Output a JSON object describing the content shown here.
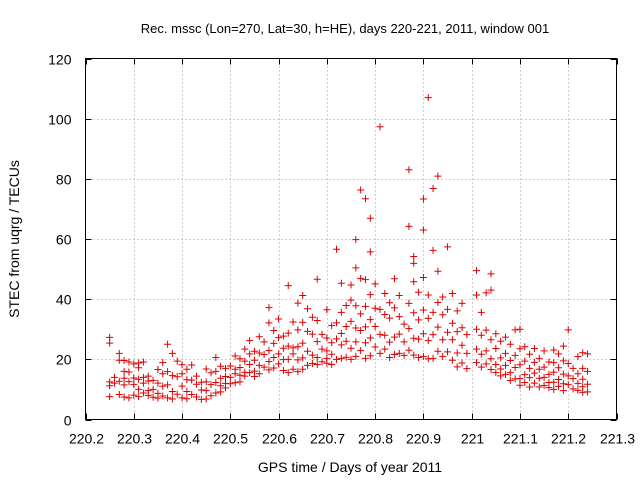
{
  "chart_data": {
    "type": "scatter",
    "title": "Rec. mssc (Lon=270, Lat=30, h=HE), days 220-221, 2011, window 001",
    "xlabel": "GPS time / Days of year 2011",
    "ylabel": "STEC from uqrg / TECUs",
    "xlim": [
      220.2,
      221.3
    ],
    "ylim": [
      0,
      120
    ],
    "xticks": [
      "220.2",
      "220.3",
      "220.4",
      "220.5",
      "220.6",
      "220.7",
      "220.8",
      "220.9",
      "221",
      "221.1",
      "221.2",
      "221.3"
    ],
    "yticks": [
      "0",
      "20",
      "40",
      "60",
      "80",
      "100",
      "120"
    ],
    "grid": true,
    "marker": "+",
    "color": "#dd0000",
    "points": [
      [
        220.25,
        27.3
      ],
      [
        220.25,
        25.4
      ],
      [
        220.25,
        12.5
      ],
      [
        220.25,
        11.2
      ],
      [
        220.25,
        7.6
      ],
      [
        220.26,
        14.0
      ],
      [
        220.26,
        12.1
      ],
      [
        220.27,
        22.0
      ],
      [
        220.27,
        19.7
      ],
      [
        220.27,
        12.7
      ],
      [
        220.27,
        8.3
      ],
      [
        220.28,
        19.6
      ],
      [
        220.28,
        16.0
      ],
      [
        220.28,
        13.7
      ],
      [
        220.28,
        11.5
      ],
      [
        220.28,
        7.5
      ],
      [
        220.29,
        19.1
      ],
      [
        220.29,
        15.8
      ],
      [
        220.29,
        12.6
      ],
      [
        220.29,
        7.2
      ],
      [
        220.3,
        18.5
      ],
      [
        220.3,
        13.8
      ],
      [
        220.3,
        11.6
      ],
      [
        220.3,
        8.1
      ],
      [
        220.31,
        18.8
      ],
      [
        220.31,
        17.2
      ],
      [
        220.31,
        13.4
      ],
      [
        220.31,
        10.0
      ],
      [
        220.31,
        7.6
      ],
      [
        220.32,
        19.1
      ],
      [
        220.32,
        14.0
      ],
      [
        220.32,
        12.1
      ],
      [
        220.32,
        8.8
      ],
      [
        220.33,
        14.4
      ],
      [
        220.33,
        12.8
      ],
      [
        220.33,
        9.6
      ],
      [
        220.33,
        8.0
      ],
      [
        220.34,
        13.0
      ],
      [
        220.34,
        10.0
      ],
      [
        220.34,
        7.4
      ],
      [
        220.35,
        16.6
      ],
      [
        220.35,
        12.1
      ],
      [
        220.35,
        8.7
      ],
      [
        220.35,
        7.1
      ],
      [
        220.36,
        18.9
      ],
      [
        220.36,
        15.2
      ],
      [
        220.36,
        11.1
      ],
      [
        220.36,
        7.8
      ],
      [
        220.37,
        25.0
      ],
      [
        220.37,
        15.9
      ],
      [
        220.37,
        11.5
      ],
      [
        220.37,
        7.2
      ],
      [
        220.38,
        22.0
      ],
      [
        220.38,
        14.6
      ],
      [
        220.38,
        9.3
      ],
      [
        220.38,
        6.8
      ],
      [
        220.39,
        19.4
      ],
      [
        220.39,
        14.2
      ],
      [
        220.39,
        8.4
      ],
      [
        220.4,
        18.2
      ],
      [
        220.4,
        15.2
      ],
      [
        220.4,
        11.1
      ],
      [
        220.4,
        7.2
      ],
      [
        220.41,
        16.7
      ],
      [
        220.41,
        13.2
      ],
      [
        220.41,
        9.3
      ],
      [
        220.41,
        6.9
      ],
      [
        220.42,
        18.1
      ],
      [
        220.42,
        13.1
      ],
      [
        220.42,
        8.3
      ],
      [
        220.43,
        14.4
      ],
      [
        220.43,
        11.7
      ],
      [
        220.43,
        7.5
      ],
      [
        220.44,
        12.4
      ],
      [
        220.44,
        9.8
      ],
      [
        220.44,
        6.7
      ],
      [
        220.45,
        16.8
      ],
      [
        220.45,
        12.5
      ],
      [
        220.45,
        9.6
      ],
      [
        220.45,
        6.8
      ],
      [
        220.46,
        15.5
      ],
      [
        220.46,
        11.6
      ],
      [
        220.46,
        7.9
      ],
      [
        220.47,
        20.6
      ],
      [
        220.47,
        16.0
      ],
      [
        220.47,
        12.3
      ],
      [
        220.47,
        8.8
      ],
      [
        220.48,
        17.7
      ],
      [
        220.48,
        13.7
      ],
      [
        220.48,
        11.2
      ],
      [
        220.48,
        9.2
      ],
      [
        220.49,
        17.0
      ],
      [
        220.49,
        14.3
      ],
      [
        220.49,
        12.0
      ],
      [
        220.49,
        10.5
      ],
      [
        220.5,
        17.8
      ],
      [
        220.5,
        14.0
      ],
      [
        220.5,
        11.9
      ],
      [
        220.51,
        21.1
      ],
      [
        220.51,
        16.7
      ],
      [
        220.51,
        15.2
      ],
      [
        220.51,
        12.2
      ],
      [
        220.52,
        20.2
      ],
      [
        220.52,
        17.3
      ],
      [
        220.52,
        14.7
      ],
      [
        220.52,
        12.5
      ],
      [
        220.53,
        23.4
      ],
      [
        220.53,
        19.4
      ],
      [
        220.53,
        15.7
      ],
      [
        220.53,
        14.4
      ],
      [
        220.54,
        26.2
      ],
      [
        220.54,
        21.8
      ],
      [
        220.54,
        18.3
      ],
      [
        220.54,
        15.6
      ],
      [
        220.55,
        22.7
      ],
      [
        220.55,
        19.7
      ],
      [
        220.55,
        16.1
      ],
      [
        220.55,
        14.3
      ],
      [
        220.56,
        27.5
      ],
      [
        220.56,
        22.1
      ],
      [
        220.56,
        18.0
      ],
      [
        220.56,
        15.2
      ],
      [
        220.57,
        25.8
      ],
      [
        220.57,
        21.6
      ],
      [
        220.57,
        17.4
      ],
      [
        220.58,
        37.2
      ],
      [
        220.58,
        32.1
      ],
      [
        220.58,
        22.9
      ],
      [
        220.58,
        19.3
      ],
      [
        220.58,
        16.5
      ],
      [
        220.59,
        29.6
      ],
      [
        220.59,
        25.3
      ],
      [
        220.59,
        20.6
      ],
      [
        220.59,
        17.1
      ],
      [
        220.6,
        33.4
      ],
      [
        220.6,
        27.2
      ],
      [
        220.6,
        21.8
      ],
      [
        220.6,
        18.5
      ],
      [
        220.61,
        27.7
      ],
      [
        220.61,
        23.7
      ],
      [
        220.61,
        19.9
      ],
      [
        220.61,
        16.3
      ],
      [
        220.62,
        44.5
      ],
      [
        220.62,
        28.7
      ],
      [
        220.62,
        24.4
      ],
      [
        220.62,
        20.0
      ],
      [
        220.62,
        15.6
      ],
      [
        220.63,
        32.4
      ],
      [
        220.63,
        23.8
      ],
      [
        220.63,
        21.8
      ],
      [
        220.63,
        16.7
      ],
      [
        220.64,
        38.7
      ],
      [
        220.64,
        29.8
      ],
      [
        220.64,
        24.2
      ],
      [
        220.64,
        19.8
      ],
      [
        220.64,
        15.9
      ],
      [
        220.65,
        41.2
      ],
      [
        220.65,
        32.3
      ],
      [
        220.65,
        25.4
      ],
      [
        220.65,
        20.5
      ],
      [
        220.65,
        16.7
      ],
      [
        220.66,
        36.8
      ],
      [
        220.66,
        29.3
      ],
      [
        220.66,
        22.7
      ],
      [
        220.66,
        18.0
      ],
      [
        220.67,
        34.0
      ],
      [
        220.67,
        28.4
      ],
      [
        220.67,
        21.4
      ],
      [
        220.67,
        18.6
      ],
      [
        220.68,
        46.6
      ],
      [
        220.68,
        32.9
      ],
      [
        220.68,
        25.9
      ],
      [
        220.68,
        20.6
      ],
      [
        220.68,
        18.3
      ],
      [
        220.69,
        28.3
      ],
      [
        220.69,
        23.4
      ],
      [
        220.69,
        19.2
      ],
      [
        220.7,
        36.5
      ],
      [
        220.7,
        27.1
      ],
      [
        220.7,
        22.8
      ],
      [
        220.7,
        20.3
      ],
      [
        220.7,
        18.7
      ],
      [
        220.71,
        31.2
      ],
      [
        220.71,
        25.5
      ],
      [
        220.71,
        21.7
      ],
      [
        220.71,
        18.3
      ],
      [
        220.72,
        56.6
      ],
      [
        220.72,
        32.1
      ],
      [
        220.72,
        26.8
      ],
      [
        220.72,
        20.0
      ],
      [
        220.73,
        45.3
      ],
      [
        220.73,
        35.6
      ],
      [
        220.73,
        28.6
      ],
      [
        220.73,
        24.8
      ],
      [
        220.73,
        20.3
      ],
      [
        220.74,
        37.9
      ],
      [
        220.74,
        30.9
      ],
      [
        220.74,
        26.0
      ],
      [
        220.74,
        20.7
      ],
      [
        220.75,
        44.7
      ],
      [
        220.75,
        39.7
      ],
      [
        220.75,
        32.6
      ],
      [
        220.75,
        23.7
      ],
      [
        220.75,
        20.0
      ],
      [
        220.76,
        59.8
      ],
      [
        220.76,
        50.4
      ],
      [
        220.76,
        37.8
      ],
      [
        220.76,
        30.4
      ],
      [
        220.76,
        25.8
      ],
      [
        220.76,
        21.0
      ],
      [
        220.77,
        76.3
      ],
      [
        220.77,
        46.9
      ],
      [
        220.77,
        35.1
      ],
      [
        220.77,
        29.6
      ],
      [
        220.77,
        22.9
      ],
      [
        220.78,
        73.4
      ],
      [
        220.78,
        46.5
      ],
      [
        220.78,
        37.6
      ],
      [
        220.78,
        30.8
      ],
      [
        220.78,
        25.5
      ],
      [
        220.78,
        20.3
      ],
      [
        220.79,
        66.9
      ],
      [
        220.79,
        55.7
      ],
      [
        220.79,
        41.5
      ],
      [
        220.79,
        33.2
      ],
      [
        220.79,
        27.1
      ],
      [
        220.79,
        21.2
      ],
      [
        220.8,
        45.1
      ],
      [
        220.8,
        37.0
      ],
      [
        220.8,
        30.9
      ],
      [
        220.8,
        24.1
      ],
      [
        220.81,
        97.3
      ],
      [
        220.81,
        36.6
      ],
      [
        220.81,
        28.3
      ],
      [
        220.81,
        22.0
      ],
      [
        220.82,
        41.9
      ],
      [
        220.82,
        34.9
      ],
      [
        220.82,
        28.0
      ],
      [
        220.82,
        23.4
      ],
      [
        220.83,
        38.8
      ],
      [
        220.83,
        33.7
      ],
      [
        220.83,
        25.7
      ],
      [
        220.83,
        20.6
      ],
      [
        220.84,
        46.8
      ],
      [
        220.84,
        37.1
      ],
      [
        220.84,
        27.4
      ],
      [
        220.84,
        21.6
      ],
      [
        220.85,
        41.2
      ],
      [
        220.85,
        34.2
      ],
      [
        220.85,
        28.4
      ],
      [
        220.85,
        22.0
      ],
      [
        220.86,
        31.7
      ],
      [
        220.86,
        25.8
      ],
      [
        220.86,
        21.3
      ],
      [
        220.87,
        83.0
      ],
      [
        220.87,
        64.2
      ],
      [
        220.87,
        38.6
      ],
      [
        220.87,
        30.2
      ],
      [
        220.87,
        23.0
      ],
      [
        220.88,
        54.2
      ],
      [
        220.88,
        51.9
      ],
      [
        220.88,
        45.8
      ],
      [
        220.88,
        35.5
      ],
      [
        220.88,
        27.0
      ],
      [
        220.88,
        21.4
      ],
      [
        220.89,
        42.3
      ],
      [
        220.89,
        33.1
      ],
      [
        220.89,
        26.7
      ],
      [
        220.89,
        20.6
      ],
      [
        220.9,
        73.3
      ],
      [
        220.9,
        63.0
      ],
      [
        220.9,
        47.2
      ],
      [
        220.9,
        36.4
      ],
      [
        220.9,
        28.5
      ],
      [
        220.9,
        21.0
      ],
      [
        220.91,
        107.0
      ],
      [
        220.91,
        41.4
      ],
      [
        220.91,
        33.6
      ],
      [
        220.91,
        26.2
      ],
      [
        220.91,
        20.2
      ],
      [
        220.92,
        76.8
      ],
      [
        220.92,
        56.2
      ],
      [
        220.92,
        35.6
      ],
      [
        220.92,
        28.2
      ],
      [
        220.92,
        20.3
      ],
      [
        220.93,
        80.9
      ],
      [
        220.93,
        49.3
      ],
      [
        220.93,
        38.9
      ],
      [
        220.93,
        30.7
      ],
      [
        220.93,
        22.7
      ],
      [
        220.94,
        40.7
      ],
      [
        220.94,
        34.8
      ],
      [
        220.94,
        26.5
      ],
      [
        220.94,
        21.0
      ],
      [
        220.95,
        57.4
      ],
      [
        220.95,
        36.6
      ],
      [
        220.95,
        29.0
      ],
      [
        220.95,
        22.5
      ],
      [
        220.96,
        41.9
      ],
      [
        220.96,
        32.0
      ],
      [
        220.96,
        26.5
      ],
      [
        220.96,
        19.7
      ],
      [
        220.97,
        36.1
      ],
      [
        220.97,
        29.2
      ],
      [
        220.97,
        22.1
      ],
      [
        220.97,
        17.5
      ],
      [
        220.98,
        38.6
      ],
      [
        220.98,
        30.5
      ],
      [
        220.98,
        24.7
      ],
      [
        220.98,
        18.8
      ],
      [
        220.99,
        28.2
      ],
      [
        220.99,
        22.0
      ],
      [
        220.99,
        16.9
      ],
      [
        221.01,
        49.5
      ],
      [
        221.01,
        41.4
      ],
      [
        221.01,
        30.0
      ],
      [
        221.01,
        23.4
      ],
      [
        221.01,
        18.9
      ],
      [
        221.02,
        35.6
      ],
      [
        221.02,
        28.0
      ],
      [
        221.02,
        21.7
      ],
      [
        221.02,
        17.4
      ],
      [
        221.03,
        42.1
      ],
      [
        221.03,
        29.7
      ],
      [
        221.03,
        22.8
      ],
      [
        221.03,
        18.5
      ],
      [
        221.04,
        48.4
      ],
      [
        221.04,
        43.0
      ],
      [
        221.04,
        26.5
      ],
      [
        221.04,
        20.2
      ],
      [
        221.04,
        16.6
      ],
      [
        221.05,
        28.5
      ],
      [
        221.05,
        23.6
      ],
      [
        221.05,
        18.3
      ],
      [
        221.05,
        15.6
      ],
      [
        221.06,
        26.0
      ],
      [
        221.06,
        20.5
      ],
      [
        221.06,
        16.8
      ],
      [
        221.06,
        14.5
      ],
      [
        221.07,
        27.4
      ],
      [
        221.07,
        22.0
      ],
      [
        221.07,
        18.0
      ],
      [
        221.07,
        15.0
      ],
      [
        221.08,
        25.0
      ],
      [
        221.08,
        19.6
      ],
      [
        221.08,
        15.6
      ],
      [
        221.08,
        13.0
      ],
      [
        221.09,
        29.8
      ],
      [
        221.09,
        21.3
      ],
      [
        221.09,
        17.3
      ],
      [
        221.09,
        13.5
      ],
      [
        221.1,
        30.0
      ],
      [
        221.1,
        23.5
      ],
      [
        221.1,
        18.2
      ],
      [
        221.1,
        13.6
      ],
      [
        221.1,
        11.4
      ],
      [
        221.11,
        24.2
      ],
      [
        221.11,
        19.4
      ],
      [
        221.11,
        14.9
      ],
      [
        221.11,
        12.3
      ],
      [
        221.12,
        21.7
      ],
      [
        221.12,
        17.0
      ],
      [
        221.12,
        13.9
      ],
      [
        221.12,
        10.8
      ],
      [
        221.13,
        23.6
      ],
      [
        221.13,
        19.0
      ],
      [
        221.13,
        15.4
      ],
      [
        221.13,
        12.1
      ],
      [
        221.14,
        20.3
      ],
      [
        221.14,
        16.7
      ],
      [
        221.14,
        13.7
      ],
      [
        221.14,
        10.8
      ],
      [
        221.15,
        22.8
      ],
      [
        221.15,
        17.4
      ],
      [
        221.15,
        14.0
      ],
      [
        221.15,
        11.3
      ],
      [
        221.16,
        19.1
      ],
      [
        221.16,
        15.0
      ],
      [
        221.16,
        12.3
      ],
      [
        221.16,
        10.6
      ],
      [
        221.17,
        23.1
      ],
      [
        221.17,
        18.9
      ],
      [
        221.17,
        15.7
      ],
      [
        221.17,
        12.4
      ],
      [
        221.17,
        10.0
      ],
      [
        221.18,
        21.8
      ],
      [
        221.18,
        17.2
      ],
      [
        221.18,
        13.3
      ],
      [
        221.18,
        11.0
      ],
      [
        221.19,
        24.4
      ],
      [
        221.19,
        19.5
      ],
      [
        221.19,
        15.1
      ],
      [
        221.19,
        11.9
      ],
      [
        221.19,
        9.6
      ],
      [
        221.2,
        29.8
      ],
      [
        221.2,
        18.6
      ],
      [
        221.2,
        14.5
      ],
      [
        221.2,
        11.6
      ],
      [
        221.21,
        17.0
      ],
      [
        221.21,
        13.6
      ],
      [
        221.21,
        10.2
      ],
      [
        221.22,
        20.9
      ],
      [
        221.22,
        15.2
      ],
      [
        221.22,
        12.0
      ],
      [
        221.22,
        9.7
      ],
      [
        221.23,
        22.2
      ],
      [
        221.23,
        17.0
      ],
      [
        221.23,
        13.4
      ],
      [
        221.23,
        10.9
      ],
      [
        221.23,
        9.0
      ],
      [
        221.24,
        21.8
      ],
      [
        221.24,
        16.0
      ],
      [
        221.24,
        11.7
      ],
      [
        221.24,
        9.2
      ]
    ]
  }
}
